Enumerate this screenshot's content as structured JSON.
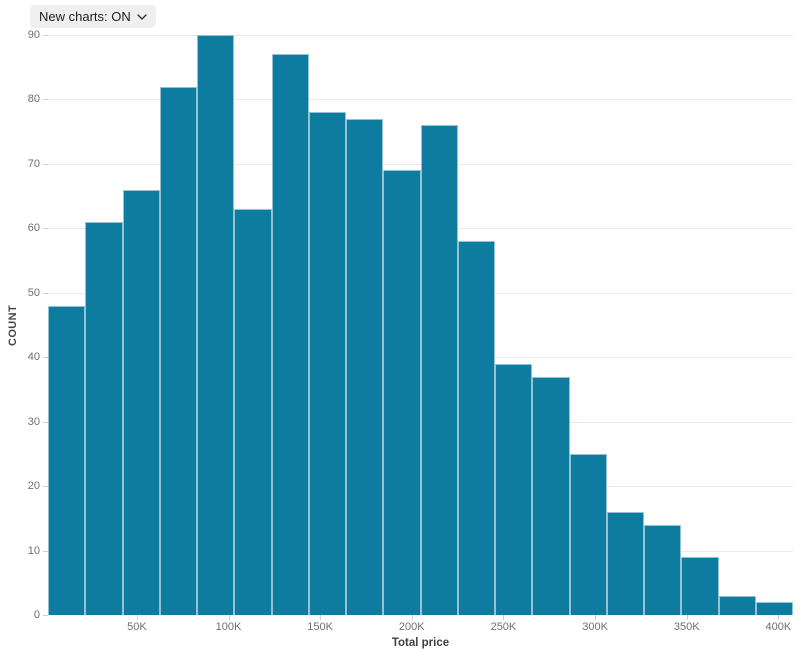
{
  "controls": {
    "chart_style_toggle": {
      "label": "New charts: ON"
    }
  },
  "chart_data": {
    "type": "bar",
    "subtype": "histogram",
    "title": "",
    "xlabel": "Total price",
    "ylabel": "COUNT",
    "n_bins": 20,
    "bin_width_k": 20,
    "values": [
      48,
      61,
      66,
      82,
      90,
      63,
      87,
      78,
      77,
      69,
      76,
      58,
      39,
      37,
      25,
      16,
      14,
      9,
      3,
      2
    ],
    "y_ticks": [
      0,
      10,
      20,
      30,
      40,
      50,
      60,
      70,
      80,
      90
    ],
    "ylim": [
      0,
      90
    ],
    "x_tick_labels": [
      "50K",
      "100K",
      "150K",
      "200K",
      "250K",
      "300K",
      "350K",
      "400K"
    ],
    "x_tick_values_k": [
      50,
      100,
      150,
      200,
      250,
      300,
      350,
      400
    ],
    "x_domain_k": [
      1.5,
      408
    ],
    "grid": "horizontal",
    "legend": "none",
    "colors": {
      "bar_fill": "#0e7c9f",
      "bar_stroke": "#93c3d4",
      "gridline": "#e9e9e9",
      "tick_text": "#6f6f6f",
      "axis_title_text": "#474747"
    }
  }
}
